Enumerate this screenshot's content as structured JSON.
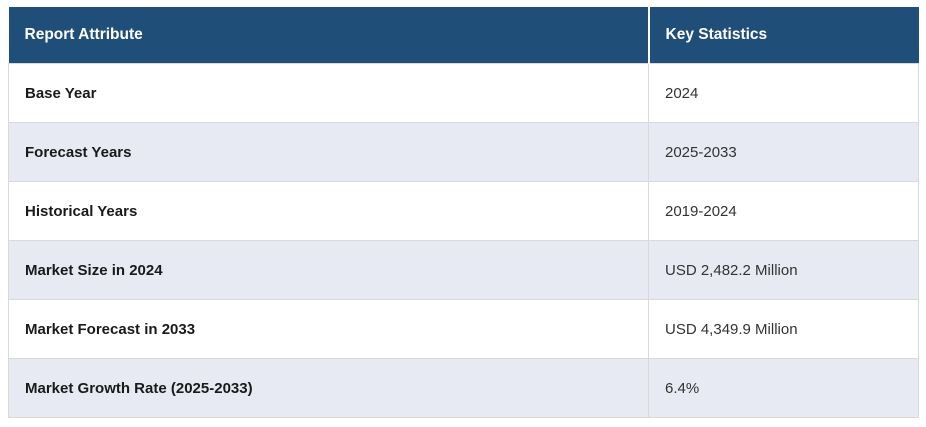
{
  "table": {
    "columns": [
      {
        "label": "Report Attribute"
      },
      {
        "label": "Key Statistics"
      }
    ],
    "rows": [
      {
        "attribute": "Base Year",
        "value": "2024"
      },
      {
        "attribute": "Forecast Years",
        "value": "2025-2033"
      },
      {
        "attribute": "Historical Years",
        "value": "2019-2024"
      },
      {
        "attribute": "Market Size in 2024",
        "value": "USD 2,482.2 Million"
      },
      {
        "attribute": "Market Forecast in 2033",
        "value": "USD 4,349.9 Million"
      },
      {
        "attribute": "Market Growth Rate (2025-2033)",
        "value": "6.4%"
      }
    ],
    "colors": {
      "header_bg": "#1F4E79",
      "header_text": "#FFFFFF",
      "row_bg": "#FFFFFF",
      "row_alt_bg": "#E7E9F3",
      "border": "#D9D9D9",
      "attribute_text": "#1A1A1A",
      "value_text": "#333333"
    }
  },
  "chart_data": {
    "type": "table",
    "title": "",
    "columns": [
      "Report Attribute",
      "Key Statistics"
    ],
    "rows": [
      [
        "Base Year",
        "2024"
      ],
      [
        "Forecast Years",
        "2025-2033"
      ],
      [
        "Historical Years",
        "2019-2024"
      ],
      [
        "Market Size in 2024",
        "USD 2,482.2 Million"
      ],
      [
        "Market Forecast in 2033",
        "USD 4,349.9 Million"
      ],
      [
        "Market Growth Rate (2025-2033)",
        "6.4%"
      ]
    ],
    "layout_hints": {
      "header_style": "dark-navy-bold-white",
      "striping": "alternating white / light-lavender starting white",
      "grid": "on"
    }
  }
}
